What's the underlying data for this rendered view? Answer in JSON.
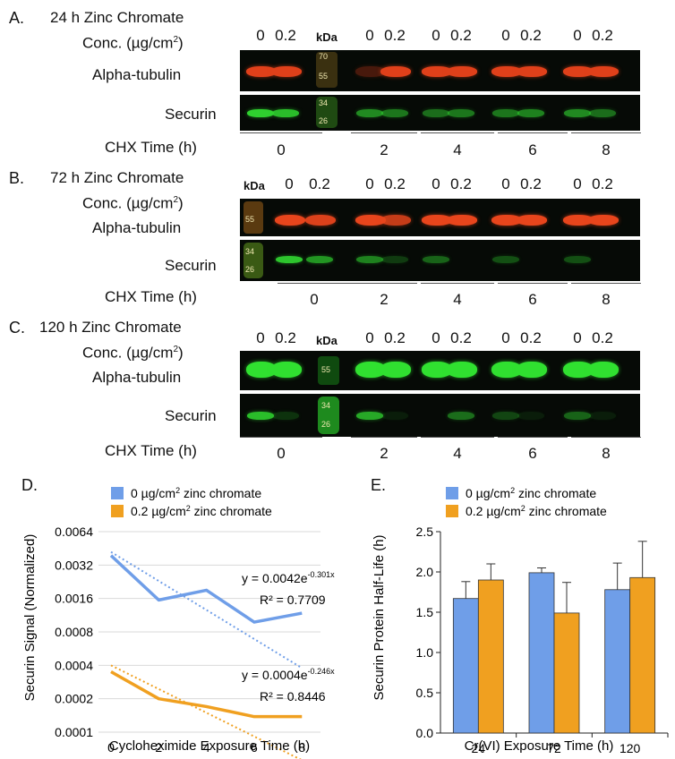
{
  "blots": [
    {
      "id": "A",
      "letter": "A.",
      "title": "24 h Zinc Chromate",
      "conc_label": "Conc. (µg/cm",
      "conc_tail": ")",
      "kda": "kDa",
      "lanes": [
        "0",
        "0.2",
        "0",
        "0.2",
        "0",
        "0.2",
        "0",
        "0.2",
        "0",
        "0.2"
      ],
      "markers_top": [
        "70",
        "55"
      ],
      "markers_bottom": [
        "34",
        "26"
      ],
      "row_labels": [
        "Alpha-tubulin",
        "Securin"
      ],
      "chx_label": "CHX Time (h)",
      "chx_times": [
        "0",
        "2",
        "4",
        "6",
        "8"
      ],
      "tubulin_color": "#e0401a",
      "securin_color": "#2fd02f"
    },
    {
      "id": "B",
      "letter": "B.",
      "title": "72 h Zinc Chromate",
      "conc_label": "Conc. (µg/cm",
      "conc_tail": ")",
      "kda": "kDa",
      "lanes": [
        "0",
        "0.2",
        "0",
        "0.2",
        "0",
        "0.2",
        "0",
        "0.2",
        "0",
        "0.2"
      ],
      "markers_top": [
        "55"
      ],
      "markers_bottom": [
        "34",
        "26"
      ],
      "row_labels": [
        "Alpha-tubulin",
        "Securin"
      ],
      "chx_label": "CHX Time (h)",
      "chx_times": [
        "0",
        "2",
        "4",
        "6",
        "8"
      ],
      "tubulin_color": "#e8451c",
      "securin_color": "#2fd02f"
    },
    {
      "id": "C",
      "letter": "C.",
      "title": "120 h Zinc Chromate",
      "conc_label": "Conc. (µg/cm",
      "conc_tail": ")",
      "kda": "kDa",
      "lanes": [
        "0",
        "0.2",
        "0",
        "0.2",
        "0",
        "0.2",
        "0",
        "0.2",
        "0",
        "0.2"
      ],
      "markers_top": [
        "55"
      ],
      "markers_bottom": [
        "34",
        "26"
      ],
      "row_labels": [
        "Alpha-tubulin",
        "Securin"
      ],
      "chx_label": "CHX Time (h)",
      "chx_times": [
        "0",
        "2",
        "4",
        "6",
        "8"
      ],
      "tubulin_color": "#30e030",
      "securin_color": "#2fd02f"
    }
  ],
  "chart_data": [
    {
      "id": "D",
      "letter": "D.",
      "type": "line",
      "x": [
        0,
        2,
        4,
        6,
        8
      ],
      "xticks": [
        "0",
        "2",
        "4",
        "6",
        "8"
      ],
      "xlabel": "Cycloheximide Exposure Time (h)",
      "ylabel": "Securin Signal (Normalized)",
      "yscale": "log2",
      "yticks": [
        "0.0001",
        "0.0002",
        "0.0004",
        "0.0008",
        "0.0016",
        "0.0032",
        "0.0064"
      ],
      "ylim": [
        0.0001,
        0.0064
      ],
      "legend_placement": "top",
      "series": [
        {
          "name": "0 µg/cm",
          "name_tail": " zinc chromate",
          "color": "#6f9ee8",
          "values": [
            0.0039,
            0.00155,
            0.0019,
            0.00098,
            0.00118
          ],
          "trend": {
            "a": 0.0042,
            "b": -0.301,
            "equation_base": "y = 0.0042e",
            "equation_exp": "-0.301x",
            "r2": "R² = 0.7709"
          }
        },
        {
          "name": "0.2 µg/cm",
          "name_tail": " zinc chromate",
          "color": "#f0a020",
          "values": [
            0.00035,
            0.0002,
            0.00017,
            0.000138,
            0.000138
          ],
          "trend": {
            "a": 0.0004,
            "b": -0.246,
            "equation_base": "y = 0.0004e",
            "equation_exp": "-0.246x",
            "r2": "R² = 0.8446"
          }
        }
      ]
    },
    {
      "id": "E",
      "letter": "E.",
      "type": "bar",
      "categories": [
        "24",
        "72",
        "120"
      ],
      "xlabel": "Cr(VI) Exposure Time (h)",
      "ylabel": "Securin Protein Half-Life (h)",
      "ylim": [
        0,
        2.5
      ],
      "yticks": [
        "0.0",
        "0.5",
        "1.0",
        "1.5",
        "2.0",
        "2.5"
      ],
      "legend_placement": "top",
      "series": [
        {
          "name": "0 µg/cm",
          "name_tail": " zinc chromate",
          "color": "#6f9ee8",
          "values": [
            1.67,
            1.99,
            1.78
          ],
          "errors": [
            0.21,
            0.06,
            0.33
          ]
        },
        {
          "name": "0.2 µg/cm",
          "name_tail": " zinc chromate",
          "color": "#f0a020",
          "values": [
            1.9,
            1.49,
            1.93
          ],
          "errors": [
            0.2,
            0.38,
            0.45
          ]
        }
      ]
    }
  ]
}
